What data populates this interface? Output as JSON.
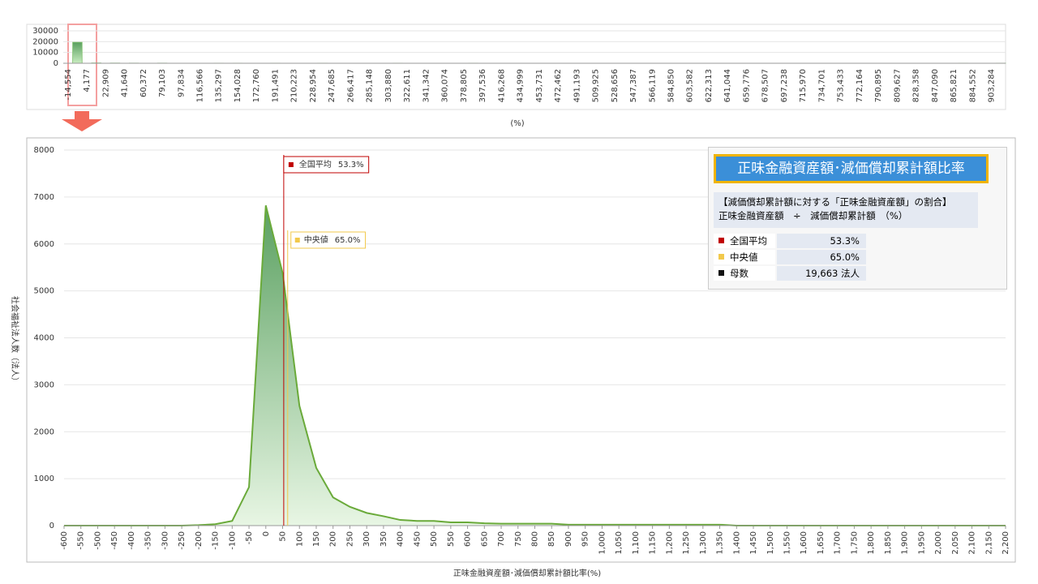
{
  "chart_data": [
    {
      "type": "bar",
      "x_label": "(%)",
      "color": "#7dc06a",
      "categories": [
        "-14,554",
        null,
        "4,177",
        null,
        "22,909",
        null,
        "41,640",
        null,
        "60,372",
        null,
        "79,103",
        null,
        "97,834",
        null,
        "116,566",
        null,
        "135,297",
        null,
        "154,028",
        null,
        "172,760",
        null,
        "191,491",
        null,
        "210,223",
        null,
        "228,954",
        null,
        "247,685",
        null,
        "266,417",
        null,
        "285,148",
        null,
        "303,880",
        null,
        "322,611",
        null,
        "341,342",
        null,
        "360,074",
        null,
        "378,805",
        null,
        "397,536",
        null,
        "416,268",
        null,
        "434,999",
        null,
        "453,731",
        null,
        "472,462",
        null,
        "491,193",
        null,
        "509,925",
        null,
        "528,656",
        null,
        "547,387",
        null,
        "566,119",
        null,
        "584,850",
        null,
        "603,582",
        null,
        "622,313",
        null,
        "641,044",
        null,
        "659,776",
        null,
        "678,507",
        null,
        "697,238",
        null,
        "715,970",
        null,
        "734,701",
        null,
        "753,433",
        null,
        "772,164",
        null,
        "790,895",
        null,
        "809,627",
        null,
        "828,358",
        null,
        "847,090",
        null,
        "865,821",
        null,
        "884,552",
        null,
        "903,284",
        null
      ],
      "values": [
        0,
        19400,
        0,
        300,
        0,
        200,
        0,
        150,
        0,
        0,
        150,
        0,
        0,
        0,
        0,
        0,
        100,
        0,
        100,
        0,
        0,
        0,
        100,
        0,
        0,
        0,
        0,
        100,
        0,
        0,
        0,
        0,
        0,
        0,
        0,
        100,
        0,
        0,
        0,
        0,
        0,
        0,
        0,
        100,
        0,
        0,
        0,
        0,
        0,
        0,
        0,
        0,
        0,
        0,
        0,
        0,
        0,
        0,
        0,
        0,
        0,
        0,
        0,
        0,
        0,
        0,
        0,
        0,
        0,
        0,
        0,
        0,
        0,
        0,
        0,
        0,
        0,
        0,
        0,
        0,
        0,
        0,
        0,
        0,
        0,
        0,
        0,
        0,
        0,
        0,
        0,
        0,
        0,
        0,
        0,
        100,
        0,
        0,
        0,
        100
      ],
      "ylim": [
        0,
        30000
      ],
      "yticks": [
        0,
        10000,
        20000,
        30000
      ],
      "grid": true
    },
    {
      "type": "area",
      "x_label": "正味金融資産額･減価償却累計額比率(%)",
      "y_label": "社会福祉法人数（法人）",
      "color": "#6aaa3a",
      "x": [
        -600,
        -550,
        -500,
        -450,
        -400,
        -350,
        -300,
        -250,
        -200,
        -150,
        -100,
        -50,
        0,
        50,
        100,
        150,
        200,
        250,
        300,
        350,
        400,
        450,
        500,
        550,
        600,
        650,
        700,
        750,
        800,
        850,
        900,
        950,
        1000,
        1050,
        1100,
        1150,
        1200,
        1250,
        1300,
        1350,
        1400,
        1450,
        1500,
        1550,
        1600,
        1650,
        1700,
        1750,
        1800,
        1850,
        1900,
        1950,
        2000,
        2050,
        2100,
        2150,
        2200
      ],
      "values": [
        0,
        0,
        0,
        0,
        0,
        0,
        0,
        0,
        10,
        30,
        100,
        820,
        6820,
        5380,
        2550,
        1230,
        600,
        400,
        270,
        200,
        120,
        100,
        100,
        70,
        70,
        50,
        40,
        40,
        40,
        40,
        20,
        20,
        20,
        20,
        20,
        20,
        20,
        20,
        20,
        20,
        0,
        0,
        0,
        0,
        0,
        0,
        0,
        0,
        0,
        0,
        0,
        0,
        0,
        0,
        0,
        0,
        0
      ],
      "xlim": [
        -600,
        2200
      ],
      "xticks": [
        -600,
        -550,
        -500,
        -450,
        -400,
        -350,
        -300,
        -250,
        -200,
        -150,
        -100,
        -50,
        0,
        50,
        100,
        150,
        200,
        250,
        300,
        350,
        400,
        450,
        500,
        550,
        600,
        650,
        700,
        750,
        800,
        850,
        900,
        950,
        {
          "value": 1000,
          "label": "1,000"
        },
        {
          "value": 1050,
          "label": "1,050"
        },
        {
          "value": 1100,
          "label": "1,100"
        },
        {
          "value": 1150,
          "label": "1,150"
        },
        {
          "value": 1200,
          "label": "1,200"
        },
        {
          "value": 1250,
          "label": "1,250"
        },
        {
          "value": 1300,
          "label": "1,300"
        },
        {
          "value": 1350,
          "label": "1,350"
        },
        {
          "value": 1400,
          "label": "1,400"
        },
        {
          "value": 1450,
          "label": "1,450"
        },
        {
          "value": 1500,
          "label": "1,500"
        },
        {
          "value": 1550,
          "label": "1,550"
        },
        {
          "value": 1600,
          "label": "1,600"
        },
        {
          "value": 1650,
          "label": "1,650"
        },
        {
          "value": 1700,
          "label": "1,700"
        },
        {
          "value": 1750,
          "label": "1,750"
        },
        {
          "value": 1800,
          "label": "1,800"
        },
        {
          "value": 1850,
          "label": "1,850"
        },
        {
          "value": 1900,
          "label": "1,900"
        },
        {
          "value": 1950,
          "label": "1,950"
        },
        {
          "value": 2000,
          "label": "2,000"
        },
        {
          "value": 2050,
          "label": "2,050"
        },
        {
          "value": 2100,
          "label": "2,100"
        },
        {
          "value": 2150,
          "label": "2,150"
        },
        {
          "value": 2200,
          "label": "2,200"
        }
      ],
      "ylim": [
        0,
        8000
      ],
      "yticks": [
        0,
        1000,
        2000,
        3000,
        4000,
        5000,
        6000,
        7000,
        8000
      ],
      "grid": true,
      "reference_lines": [
        {
          "name": "全国平均",
          "value": 53.3,
          "label": "53.3%",
          "color": "#c00000"
        },
        {
          "name": "中央値",
          "value": 65.0,
          "label": "65.0%",
          "color": "#f2c94c"
        }
      ]
    }
  ],
  "info_panel": {
    "title": "正味金融資産額･減価償却累計額比率",
    "formula_title": "【減価償却累計額に対する「正味金融資産額」の割合】",
    "formula": "正味金融資産額　÷　減価償却累計額　（%）",
    "count_name": "母数",
    "count": "19,663 法人"
  }
}
